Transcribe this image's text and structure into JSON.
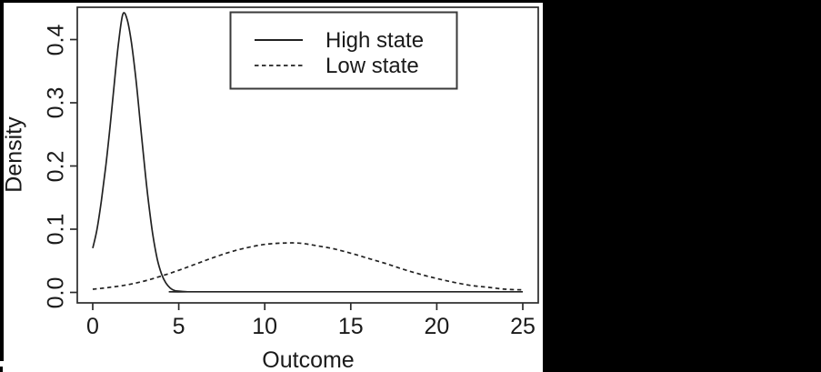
{
  "colors": {
    "letterbox": "#000000",
    "background": "#ffffff",
    "line": "#222222",
    "frame": "#2b2b2b",
    "text": "#1a1a1a"
  },
  "chart_data": {
    "type": "line",
    "title": "",
    "xlabel": "Outcome",
    "ylabel": "Density",
    "xlim": [
      0,
      25
    ],
    "ylim": [
      0,
      0.45
    ],
    "x_ticks": [
      0,
      5,
      10,
      15,
      20,
      25
    ],
    "y_ticks": [
      "0.0",
      "0.1",
      "0.2",
      "0.3",
      "0.4"
    ],
    "grid": false,
    "legend_position": "top-inside",
    "series": [
      {
        "name": "High state",
        "style": "solid",
        "color": "#222222",
        "x": [
          0,
          0.25,
          0.5,
          0.75,
          1,
          1.25,
          1.5,
          1.75,
          2,
          2.25,
          2.5,
          2.75,
          3,
          3.25,
          3.5,
          3.75,
          4,
          4.25,
          4.5,
          4.75,
          5,
          5.5,
          6,
          25
        ],
        "y": [
          0.07,
          0.1,
          0.145,
          0.198,
          0.26,
          0.33,
          0.395,
          0.44,
          0.432,
          0.395,
          0.34,
          0.272,
          0.203,
          0.141,
          0.09,
          0.053,
          0.029,
          0.015,
          0.007,
          0.003,
          0.002,
          0.001,
          0.001,
          0.001
        ]
      },
      {
        "name": "Low state",
        "style": "dashed",
        "color": "#222222",
        "x": [
          0,
          1,
          2,
          3,
          4,
          5,
          6,
          7,
          8,
          9,
          10,
          11,
          12,
          13,
          14,
          15,
          16,
          17,
          18,
          19,
          20,
          21,
          22,
          23,
          24,
          25
        ],
        "y": [
          0.005,
          0.008,
          0.012,
          0.018,
          0.026,
          0.035,
          0.045,
          0.055,
          0.064,
          0.071,
          0.076,
          0.078,
          0.078,
          0.074,
          0.069,
          0.062,
          0.054,
          0.046,
          0.037,
          0.029,
          0.022,
          0.016,
          0.011,
          0.008,
          0.005,
          0.004
        ]
      }
    ]
  }
}
